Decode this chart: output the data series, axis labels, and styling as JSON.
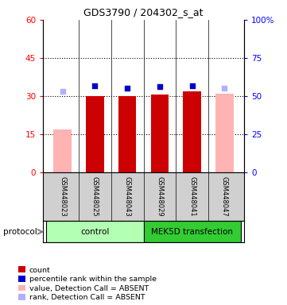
{
  "title": "GDS3790 / 204302_s_at",
  "samples": [
    "GSM448023",
    "GSM448025",
    "GSM448043",
    "GSM448029",
    "GSM448041",
    "GSM448047"
  ],
  "bar_values": [
    17,
    30,
    30,
    30.5,
    32,
    31
  ],
  "bar_colors": [
    "#ffb3b3",
    "#cc0000",
    "#cc0000",
    "#cc0000",
    "#cc0000",
    "#ffb3b3"
  ],
  "bar_absent": [
    true,
    false,
    false,
    false,
    false,
    true
  ],
  "dot_values_pct": [
    53,
    57,
    55,
    56,
    57,
    55
  ],
  "dot_colors": [
    "#b0b0ff",
    "#0000cc",
    "#0000cc",
    "#0000cc",
    "#0000cc",
    "#b0b0ff"
  ],
  "dot_absent": [
    true,
    false,
    false,
    false,
    false,
    true
  ],
  "ylim_left": [
    0,
    60
  ],
  "ylim_right": [
    0,
    100
  ],
  "yticks_left": [
    0,
    15,
    30,
    45,
    60
  ],
  "yticks_right": [
    0,
    25,
    50,
    75,
    100
  ],
  "ytick_labels_left": [
    "0",
    "15",
    "30",
    "45",
    "60"
  ],
  "ytick_labels_right": [
    "0",
    "25",
    "50",
    "75",
    "100%"
  ],
  "ctrl_color": "#b3ffb3",
  "mek_color": "#33cc33",
  "legend_items": [
    {
      "color": "#cc0000",
      "label": "count",
      "marker": "s"
    },
    {
      "color": "#0000cc",
      "label": "percentile rank within the sample",
      "marker": "s"
    },
    {
      "color": "#ffb3b3",
      "label": "value, Detection Call = ABSENT",
      "marker": "s"
    },
    {
      "color": "#b0b0ff",
      "label": "rank, Detection Call = ABSENT",
      "marker": "s"
    }
  ],
  "protocol_label": "protocol"
}
